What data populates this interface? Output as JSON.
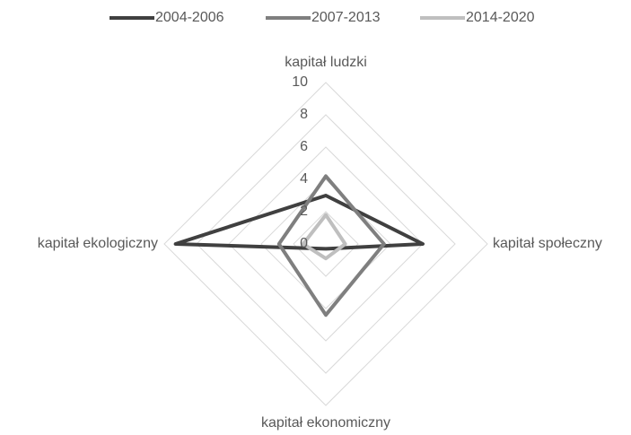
{
  "chart_data": {
    "type": "radar",
    "categories": [
      "kapitał ludzki",
      "kapitał społeczny",
      "kapitał ekonomiczny",
      "kapitał ekologiczny"
    ],
    "series": [
      {
        "name": "2004-2006",
        "color": "#404040",
        "values": [
          3,
          6,
          0.3,
          9.3
        ]
      },
      {
        "name": "2007-2013",
        "color": "#7f7f7f",
        "values": [
          4.2,
          3.6,
          4.4,
          2.9
        ]
      },
      {
        "name": "2014-2020",
        "color": "#bfbfbf",
        "values": [
          1.8,
          1.2,
          0.9,
          1.4
        ]
      }
    ],
    "ylim": [
      0,
      10
    ],
    "yticks": [
      0,
      2,
      4,
      6,
      8,
      10
    ],
    "grid": true,
    "legend": "top"
  }
}
